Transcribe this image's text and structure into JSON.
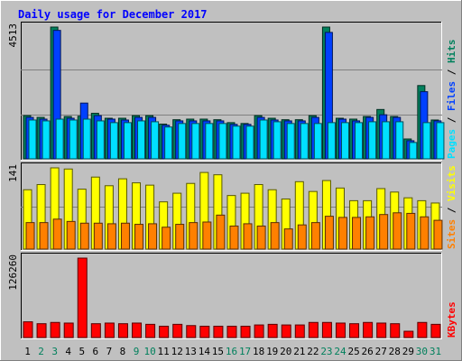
{
  "chart_data": [
    {
      "type": "bar",
      "panel": "hits-files-pages",
      "title": "Daily usage for December 2017",
      "ylabel_max": "4513",
      "legend": [
        "Pages",
        "Files",
        "Hits"
      ],
      "categories": [
        "1",
        "2",
        "3",
        "4",
        "5",
        "6",
        "7",
        "8",
        "9",
        "10",
        "11",
        "12",
        "13",
        "14",
        "15",
        "16",
        "17",
        "18",
        "19",
        "20",
        "21",
        "22",
        "23",
        "24",
        "25",
        "26",
        "27",
        "28",
        "29",
        "30",
        "31"
      ],
      "series": [
        {
          "name": "Hits",
          "values": [
            1480,
            1420,
            4513,
            1450,
            1460,
            1560,
            1390,
            1390,
            1480,
            1480,
            1190,
            1340,
            1360,
            1360,
            1340,
            1240,
            1210,
            1480,
            1390,
            1340,
            1340,
            1480,
            4513,
            1390,
            1360,
            1450,
            1690,
            1450,
            680,
            2510,
            1330
          ]
        },
        {
          "name": "Files",
          "values": [
            1420,
            1360,
            4400,
            1390,
            1910,
            1480,
            1360,
            1330,
            1420,
            1420,
            1150,
            1300,
            1300,
            1300,
            1300,
            1180,
            1180,
            1420,
            1330,
            1300,
            1300,
            1420,
            4330,
            1360,
            1300,
            1420,
            1510,
            1420,
            620,
            2300,
            1300
          ]
        },
        {
          "name": "Pages",
          "values": [
            1330,
            1300,
            1360,
            1330,
            1360,
            1300,
            1240,
            1240,
            1300,
            1270,
            1090,
            1210,
            1210,
            1210,
            1210,
            1120,
            1120,
            1330,
            1270,
            1210,
            1210,
            1210,
            1240,
            1240,
            1240,
            1270,
            1270,
            1270,
            560,
            1240,
            1240
          ]
        }
      ],
      "colors": {
        "Hits": "#00805c",
        "Files": "#0040ff",
        "Pages": "#00e0ff"
      }
    },
    {
      "type": "bar",
      "panel": "visits-sites",
      "ylabel_max": "141",
      "legend": [
        "Sites",
        "Visits"
      ],
      "categories": [
        "1",
        "2",
        "3",
        "4",
        "5",
        "6",
        "7",
        "8",
        "9",
        "10",
        "11",
        "12",
        "13",
        "14",
        "15",
        "16",
        "17",
        "18",
        "19",
        "20",
        "21",
        "22",
        "23",
        "24",
        "25",
        "26",
        "27",
        "28",
        "29",
        "30",
        "31"
      ],
      "series": [
        {
          "name": "Visits",
          "values": [
            103,
            112,
            141,
            139,
            104,
            125,
            110,
            122,
            115,
            111,
            82,
            97,
            114,
            133,
            129,
            93,
            97,
            112,
            103,
            87,
            117,
            100,
            119,
            106,
            84,
            84,
            105,
            99,
            89,
            84,
            80
          ]
        },
        {
          "name": "Sites",
          "values": [
            46,
            46,
            52,
            48,
            45,
            45,
            44,
            45,
            43,
            44,
            38,
            43,
            46,
            47,
            59,
            40,
            44,
            40,
            46,
            35,
            42,
            46,
            57,
            55,
            55,
            56,
            60,
            63,
            62,
            56,
            50
          ]
        }
      ],
      "colors": {
        "Visits": "#ffff00",
        "Sites": "#ff8000"
      }
    },
    {
      "type": "bar",
      "panel": "kbytes",
      "ylabel_max": "126260",
      "legend": [
        "KBytes"
      ],
      "categories": [
        "1",
        "2",
        "3",
        "4",
        "5",
        "6",
        "7",
        "8",
        "9",
        "10",
        "11",
        "12",
        "13",
        "14",
        "15",
        "16",
        "17",
        "18",
        "19",
        "20",
        "21",
        "22",
        "23",
        "24",
        "25",
        "26",
        "27",
        "28",
        "29",
        "30",
        "31"
      ],
      "series": [
        {
          "name": "KBytes",
          "values": [
            25000,
            22000,
            24000,
            23000,
            126260,
            22000,
            23000,
            22000,
            23000,
            21000,
            18000,
            21000,
            19000,
            18000,
            18000,
            18000,
            18000,
            20000,
            21000,
            20000,
            20000,
            24000,
            24000,
            23000,
            22000,
            24000,
            23000,
            22000,
            10000,
            24000,
            21000
          ]
        }
      ],
      "colors": {
        "KBytes": "#ff0000"
      }
    }
  ],
  "weekend_days": [
    "2",
    "3",
    "9",
    "10",
    "16",
    "17",
    "23",
    "24",
    "30",
    "31"
  ],
  "colors": {
    "background": "#c0c0c0",
    "title": "#0000ff",
    "weekday_label": "#000000",
    "weekend_label": "#00805c",
    "slash": "#000000"
  }
}
